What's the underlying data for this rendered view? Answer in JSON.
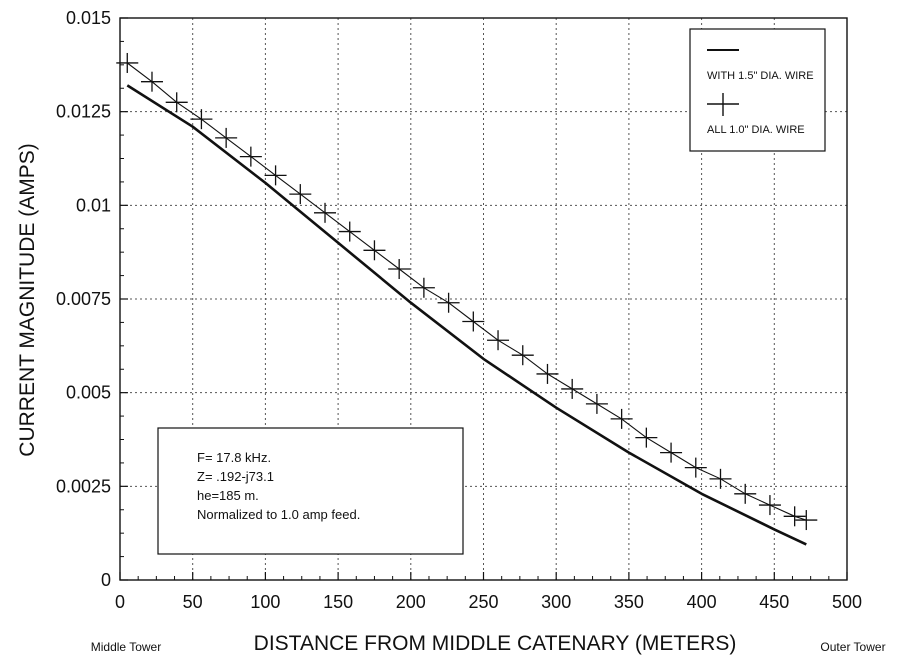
{
  "chart_data": {
    "type": "line",
    "xlabel": "DISTANCE FROM MIDDLE CATENARY (METERS)",
    "ylabel": "CURRENT MAGNITUDE (AMPS)",
    "xlim": [
      0,
      500
    ],
    "ylim": [
      0,
      0.015
    ],
    "x_ticks": [
      "0",
      "50",
      "100",
      "150",
      "200",
      "250",
      "300",
      "350",
      "400",
      "450",
      "500"
    ],
    "y_ticks": [
      "0",
      "0.0025",
      "0.005",
      "0.0075",
      "0.01",
      "0.0125",
      "0.015"
    ],
    "x_end_labels": {
      "left": "Middle Tower",
      "right": "Outer Tower"
    },
    "grid": true,
    "legend_position": "top-right",
    "series": [
      {
        "name": "WITH 1.5\" DIA. WIRE",
        "style": "solid",
        "x": [
          5,
          50,
          100,
          150,
          200,
          250,
          300,
          350,
          400,
          450,
          472
        ],
        "values": [
          0.0132,
          0.0121,
          0.0106,
          0.009,
          0.0074,
          0.0059,
          0.0046,
          0.0034,
          0.0023,
          0.00135,
          0.00095
        ]
      },
      {
        "name": "ALL 1.0\" DIA. WIRE",
        "style": "cross-markers",
        "x": [
          5,
          22,
          39,
          56,
          73,
          90,
          107,
          124,
          141,
          158,
          175,
          192,
          209,
          226,
          243,
          260,
          277,
          294,
          311,
          328,
          345,
          362,
          379,
          396,
          413,
          430,
          447,
          464,
          472
        ],
        "values": [
          0.0138,
          0.0133,
          0.01275,
          0.0123,
          0.0118,
          0.0113,
          0.0108,
          0.0103,
          0.0098,
          0.0093,
          0.0088,
          0.0083,
          0.0078,
          0.0074,
          0.0069,
          0.0064,
          0.006,
          0.0055,
          0.0051,
          0.0047,
          0.0043,
          0.0038,
          0.0034,
          0.003,
          0.0027,
          0.0023,
          0.002,
          0.0017,
          0.0016
        ]
      }
    ],
    "annotation_lines": [
      "F= 17.8 kHz.",
      "Z= .192-j73.1",
      "he=185 m.",
      "Normalized to 1.0 amp feed."
    ]
  }
}
